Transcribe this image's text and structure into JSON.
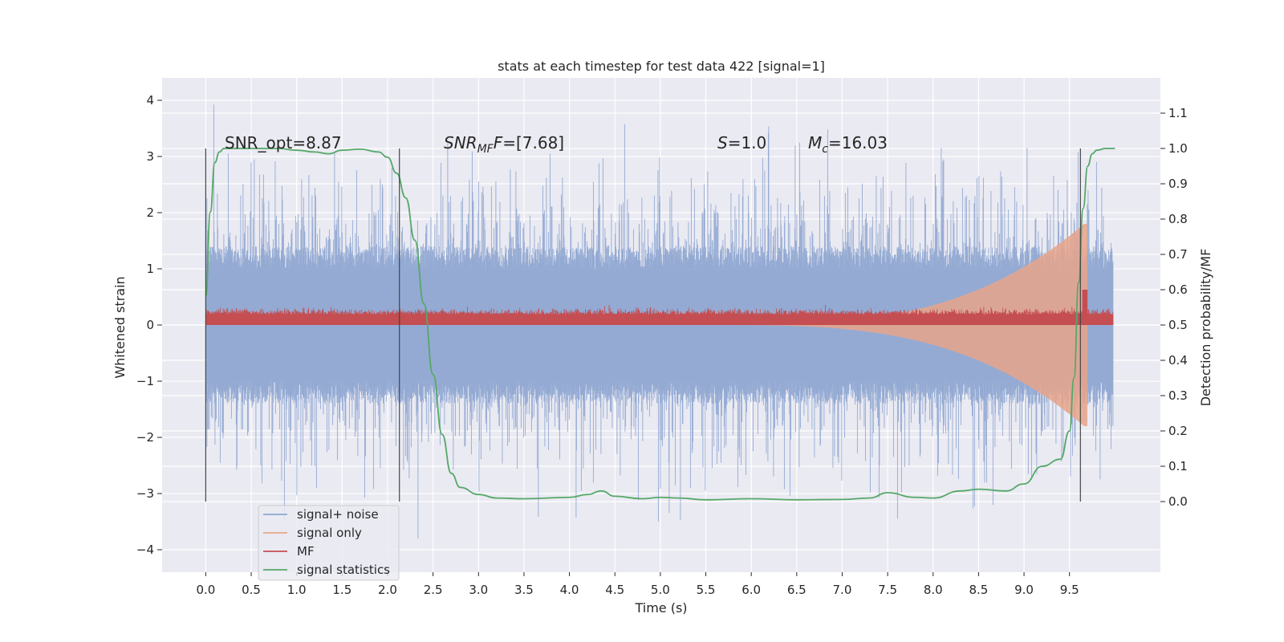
{
  "chart_data": {
    "type": "line",
    "title": "stats at each timestep for test data 422 [signal=1]",
    "xlabel": "Time (s)",
    "ylabel_left": "Whitened strain",
    "ylabel_right": "Detection probability/MF",
    "xlim": [
      -0.48,
      10.5
    ],
    "ylim_left": [
      -4.4,
      4.4
    ],
    "ylim_right": [
      -0.2,
      1.2
    ],
    "x_ticks": [
      "0.0",
      "0.5",
      "1.0",
      "1.5",
      "2.0",
      "2.5",
      "3.0",
      "3.5",
      "4.0",
      "4.5",
      "5.0",
      "5.5",
      "6.0",
      "6.5",
      "7.0",
      "7.5",
      "8.0",
      "8.5",
      "9.0",
      "9.5"
    ],
    "y_ticks_left": [
      "4",
      "3",
      "2",
      "1",
      "0",
      "−1",
      "−2",
      "−3",
      "−4"
    ],
    "y_ticks_right": [
      "1.1",
      "1.0",
      "0.9",
      "0.8",
      "0.7",
      "0.6",
      "0.5",
      "0.4",
      "0.3",
      "0.2",
      "0.1",
      "0.0"
    ],
    "grid": true,
    "background": "#eaeaf2",
    "annotations": {
      "snr_opt": "SNR_opt=8.87",
      "snr_mf_prefix": "SNR",
      "snr_mf_sub": "MF",
      "snr_mf_rest": "=[7.68]",
      "s_prefix": "S",
      "s_rest": "=1.0",
      "mc_prefix": "M",
      "mc_sub": "c",
      "mc_rest": "=16.03"
    },
    "vertical_lines_x": [
      0.0,
      2.13,
      9.62
    ],
    "legend": {
      "position": "lower-left",
      "entries": [
        {
          "label": "signal+ noise",
          "color": "#8fa7d1"
        },
        {
          "label": "signal only",
          "color": "#e8a58a"
        },
        {
          "label": "MF",
          "color": "#c44e52"
        },
        {
          "label": "signal statistics",
          "color": "#55a868"
        }
      ]
    },
    "series": [
      {
        "name": "signal+ noise",
        "axis": "left",
        "color": "#8fa7d1",
        "style": "noise",
        "x_range": [
          0.0,
          9.98
        ],
        "approx_sigma": 1.0,
        "approx_extent": [
          -3.8,
          4.0
        ]
      },
      {
        "name": "signal only",
        "axis": "left",
        "color": "#e8a58a",
        "style": "chirp",
        "x_range": [
          5.5,
          9.7
        ],
        "peak_x": 9.66,
        "peak_amplitude": 1.8
      },
      {
        "name": "MF",
        "axis": "right",
        "color": "#c44e52",
        "style": "band",
        "x_range": [
          0.0,
          9.98
        ],
        "approx_baseline": 0.5,
        "approx_top": 0.53,
        "peak_x": 9.67,
        "peak_value": 0.6
      },
      {
        "name": "signal statistics",
        "axis": "right",
        "color": "#55a868",
        "style": "curve",
        "x": [
          0.0,
          0.05,
          0.1,
          0.15,
          0.2,
          0.3,
          0.5,
          0.8,
          1.0,
          1.2,
          1.35,
          1.5,
          1.7,
          1.9,
          2.0,
          2.1,
          2.2,
          2.3,
          2.4,
          2.5,
          2.6,
          2.7,
          2.8,
          3.0,
          3.2,
          3.5,
          4.0,
          4.2,
          4.35,
          4.5,
          4.8,
          5.0,
          5.2,
          5.5,
          6.0,
          6.5,
          7.0,
          7.3,
          7.5,
          7.8,
          8.0,
          8.3,
          8.5,
          8.8,
          9.0,
          9.2,
          9.4,
          9.5,
          9.55,
          9.6,
          9.65,
          9.7,
          9.75,
          9.8,
          9.9,
          10.0
        ],
        "y": [
          0.58,
          0.82,
          0.96,
          0.99,
          1.0,
          1.0,
          1.0,
          1.0,
          0.995,
          0.99,
          0.985,
          0.995,
          0.998,
          0.99,
          0.975,
          0.93,
          0.86,
          0.74,
          0.56,
          0.36,
          0.19,
          0.08,
          0.04,
          0.02,
          0.01,
          0.008,
          0.012,
          0.02,
          0.03,
          0.015,
          0.008,
          0.012,
          0.01,
          0.005,
          0.008,
          0.005,
          0.006,
          0.01,
          0.025,
          0.012,
          0.01,
          0.03,
          0.035,
          0.03,
          0.05,
          0.1,
          0.12,
          0.2,
          0.35,
          0.62,
          0.83,
          0.95,
          0.985,
          0.995,
          1.0,
          1.0
        ]
      }
    ]
  }
}
